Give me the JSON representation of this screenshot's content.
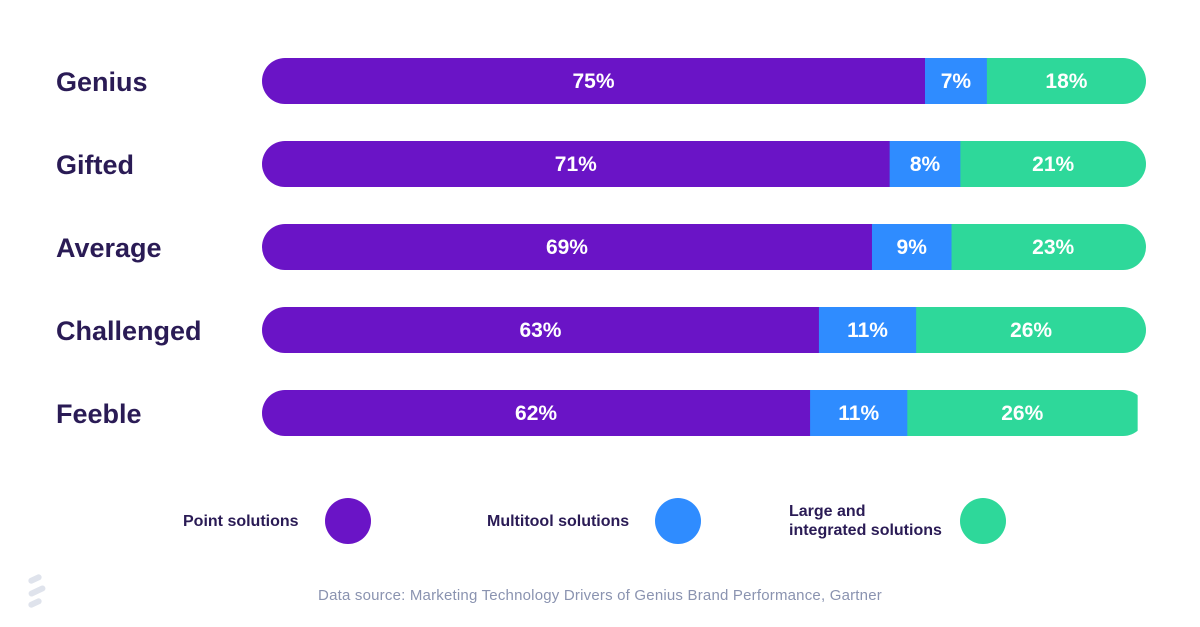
{
  "chart_data": {
    "type": "bar",
    "orientation": "horizontal",
    "stacked": true,
    "unit": "%",
    "xlim": [
      0,
      100
    ],
    "categories": [
      "Genius",
      "Gifted",
      "Average",
      "Challenged",
      "Feeble"
    ],
    "series": [
      {
        "name": "Point solutions",
        "color": "#6a14c6",
        "values": [
          75,
          71,
          69,
          63,
          62
        ],
        "labels": [
          "75%",
          "71%",
          "69%",
          "63%",
          "62%"
        ]
      },
      {
        "name": "Multitool solutions",
        "color": "#2f8cff",
        "values": [
          7,
          8,
          9,
          11,
          11
        ],
        "labels": [
          "7%",
          "8%",
          "9%",
          "11%",
          "11%"
        ]
      },
      {
        "name": "Large and integrated solutions",
        "color": "#2ed89a",
        "values": [
          18,
          21,
          23,
          26,
          26
        ],
        "labels": [
          "18%",
          "21%",
          "23%",
          "26%",
          "26%"
        ]
      }
    ],
    "legend": {
      "placement": "bottom",
      "items": [
        {
          "lines": [
            "Point solutions"
          ],
          "color": "#6a14c6"
        },
        {
          "lines": [
            "Multitool solutions"
          ],
          "color": "#2f8cff"
        },
        {
          "lines": [
            "Large and",
            "integrated solutions"
          ],
          "color": "#2ed89a"
        }
      ]
    },
    "source": "Data source: Marketing Technology Drivers of Genius Brand Performance, Gartner"
  },
  "colors": {
    "label_text": "#2a1b55",
    "source_text": "#8a93b0",
    "logo": "#dfe3ec"
  },
  "icons": {
    "logo": "brand-logo-icon"
  }
}
